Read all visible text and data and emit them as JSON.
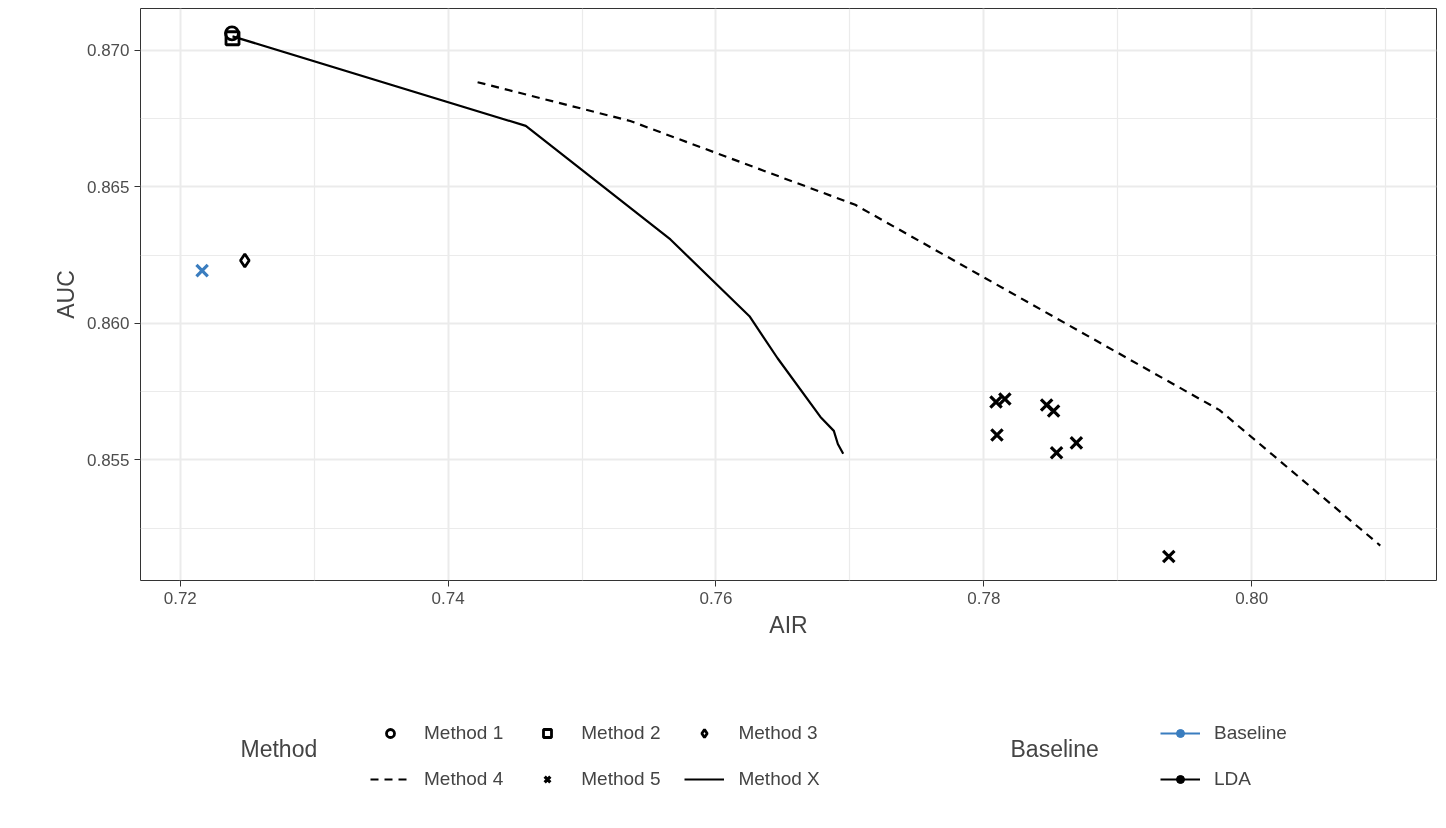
{
  "chart_data": {
    "type": "scatter",
    "xlabel": "AIR",
    "ylabel": "AUC",
    "legend_title": "Method",
    "legend": "bottom",
    "grid": true,
    "xlim": [
      0.71703,
      0.8138
    ],
    "ylim": [
      0.85058,
      0.87153
    ],
    "xticks": [
      0.72,
      0.74,
      0.76,
      0.78,
      {
        "value": 0.8,
        "label": "0.80"
      }
    ],
    "yticks": [
      0.855,
      {
        "value": 0.86,
        "label": "0.860"
      },
      0.865,
      {
        "value": 0.87,
        "label": "0.870"
      }
    ],
    "annotations": [
      "Baseline",
      "LDA"
    ],
    "series": [
      {
        "name": "Method 1",
        "marker": "circle",
        "color": "#000000",
        "x": [
          0.72386
        ],
        "values": [
          0.87062
        ]
      },
      {
        "name": "Method 2",
        "marker": "square",
        "color": "#000000",
        "x": [
          0.7239
        ],
        "values": [
          0.87044
        ]
      },
      {
        "name": "Method 3",
        "marker": "diamond",
        "color": "#000000",
        "x": [
          0.72482
        ],
        "values": [
          0.8623
        ]
      },
      {
        "name": "Method 4",
        "type": "line",
        "line_style": "dashed",
        "color": "#000000",
        "x": [
          0.7422,
          0.7536,
          0.7704,
          0.7833,
          0.7976,
          0.8096
        ],
        "values": [
          0.86883,
          0.86741,
          0.86434,
          0.86077,
          0.85682,
          0.85186
        ]
      },
      {
        "name": "Method 5",
        "marker": "cross",
        "color": "#000000",
        "x": [
          0.78091,
          0.78157,
          0.78098,
          0.78469,
          0.78521,
          0.78543,
          0.78691,
          0.79381
        ],
        "values": [
          0.85712,
          0.85723,
          0.85591,
          0.85701,
          0.85679,
          0.85526,
          0.85562,
          0.85146
        ]
      },
      {
        "name": "Method X",
        "type": "line",
        "line_style": "solid",
        "color": "#000000",
        "x": [
          0.7239,
          0.7458,
          0.7566,
          0.7625,
          0.7646,
          0.7678,
          0.7688,
          0.7691,
          0.7695
        ],
        "values": [
          0.87051,
          0.86723,
          0.86307,
          0.86026,
          0.85872,
          0.85657,
          0.85606,
          0.85558,
          0.85522
        ]
      },
      {
        "name": "Baseline",
        "marker": "cross",
        "color": "#3a7dbf",
        "x": [
          0.72163
        ],
        "values": [
          0.86193
        ]
      }
    ]
  }
}
